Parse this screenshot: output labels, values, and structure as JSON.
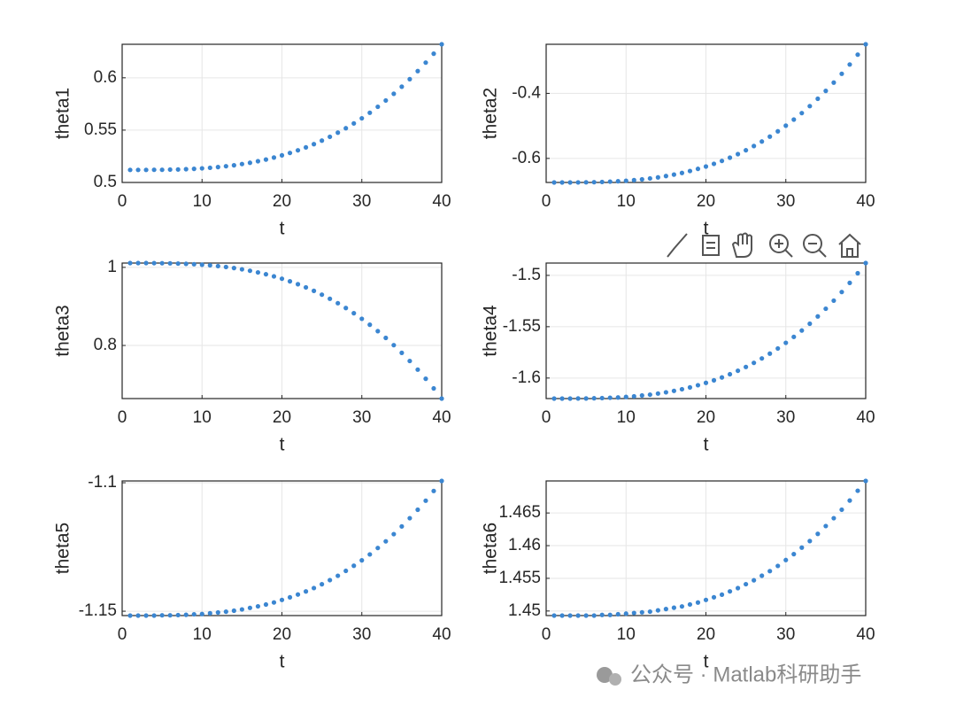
{
  "chart_data": [
    {
      "type": "scatter",
      "xlabel": "t",
      "ylabel": "theta1",
      "color": "#3b86d1",
      "grid": true,
      "x": [
        1,
        2,
        3,
        4,
        5,
        6,
        7,
        8,
        9,
        10,
        11,
        12,
        13,
        14,
        15,
        16,
        17,
        18,
        19,
        20,
        21,
        22,
        23,
        24,
        25,
        26,
        27,
        28,
        29,
        30,
        31,
        32,
        33,
        34,
        35,
        36,
        37,
        38,
        39,
        40
      ],
      "values": [
        0.512,
        0.512,
        0.512,
        0.5121,
        0.5121,
        0.5123,
        0.5124,
        0.5127,
        0.513,
        0.5135,
        0.514,
        0.5147,
        0.5155,
        0.5164,
        0.5176,
        0.5188,
        0.5203,
        0.5219,
        0.5238,
        0.5259,
        0.5282,
        0.5307,
        0.5335,
        0.5366,
        0.54,
        0.5436,
        0.5476,
        0.5518,
        0.5564,
        0.5613,
        0.5666,
        0.5723,
        0.5783,
        0.5847,
        0.5915,
        0.5987,
        0.6064,
        0.6145,
        0.623,
        0.632
      ],
      "xlim": [
        0,
        40
      ],
      "xticks": [
        0,
        10,
        20,
        30,
        40
      ],
      "ylim": [
        0.5,
        0.632
      ],
      "yticks": [
        0.5,
        0.55,
        0.6
      ]
    },
    {
      "type": "scatter",
      "xlabel": "t",
      "ylabel": "theta2",
      "color": "#3b86d1",
      "grid": true,
      "x": [
        1,
        2,
        3,
        4,
        5,
        6,
        7,
        8,
        9,
        10,
        11,
        12,
        13,
        14,
        15,
        16,
        17,
        18,
        19,
        20,
        21,
        22,
        23,
        24,
        25,
        26,
        27,
        28,
        29,
        30,
        31,
        32,
        33,
        34,
        35,
        36,
        37,
        38,
        39,
        40
      ],
      "values": [
        -0.674,
        -0.674,
        -0.674,
        -0.6738,
        -0.6735,
        -0.6731,
        -0.6725,
        -0.6715,
        -0.6703,
        -0.6688,
        -0.6668,
        -0.6645,
        -0.6616,
        -0.6583,
        -0.6543,
        -0.6498,
        -0.6447,
        -0.6388,
        -0.6322,
        -0.6249,
        -0.6167,
        -0.6077,
        -0.5977,
        -0.5868,
        -0.575,
        -0.562,
        -0.5481,
        -0.533,
        -0.5167,
        -0.4993,
        -0.4806,
        -0.4606,
        -0.4392,
        -0.4165,
        -0.3924,
        -0.3668,
        -0.3397,
        -0.3111,
        -0.2809,
        -0.249
      ],
      "xlim": [
        0,
        40
      ],
      "xticks": [
        0,
        10,
        20,
        30,
        40
      ],
      "ylim": [
        -0.674,
        -0.249
      ],
      "yticks": [
        -0.6,
        -0.4
      ]
    },
    {
      "type": "scatter",
      "xlabel": "t",
      "ylabel": "theta3",
      "color": "#3b86d1",
      "grid": true,
      "x": [
        1,
        2,
        3,
        4,
        5,
        6,
        7,
        8,
        9,
        10,
        11,
        12,
        13,
        14,
        15,
        16,
        17,
        18,
        19,
        20,
        21,
        22,
        23,
        24,
        25,
        26,
        27,
        28,
        29,
        30,
        31,
        32,
        33,
        34,
        35,
        36,
        37,
        38,
        39,
        40
      ],
      "values": [
        1.011,
        1.011,
        1.011,
        1.0108,
        1.0106,
        1.0103,
        1.0097,
        1.009,
        1.008,
        1.0067,
        1.0052,
        1.0032,
        1.0009,
        0.9982,
        0.995,
        0.9913,
        0.987,
        0.9823,
        0.9769,
        0.9709,
        0.9642,
        0.9568,
        0.9487,
        0.9398,
        0.9301,
        0.9196,
        0.9082,
        0.8959,
        0.8826,
        0.8683,
        0.8531,
        0.8367,
        0.8193,
        0.8008,
        0.7811,
        0.7602,
        0.7381,
        0.7147,
        0.69,
        0.664
      ],
      "xlim": [
        0,
        40
      ],
      "xticks": [
        0,
        10,
        20,
        30,
        40
      ],
      "ylim": [
        0.664,
        1.011
      ],
      "yticks": [
        0.8,
        1
      ]
    },
    {
      "type": "scatter",
      "xlabel": "t",
      "ylabel": "theta4",
      "color": "#3b86d1",
      "grid": true,
      "x": [
        1,
        2,
        3,
        4,
        5,
        6,
        7,
        8,
        9,
        10,
        11,
        12,
        13,
        14,
        15,
        16,
        17,
        18,
        19,
        20,
        21,
        22,
        23,
        24,
        25,
        26,
        27,
        28,
        29,
        30,
        31,
        32,
        33,
        34,
        35,
        36,
        37,
        38,
        39,
        40
      ],
      "values": [
        -1.62,
        -1.62,
        -1.62,
        -1.6199,
        -1.6199,
        -1.6197,
        -1.6195,
        -1.6192,
        -1.6189,
        -1.6184,
        -1.6178,
        -1.617,
        -1.6162,
        -1.6151,
        -1.6139,
        -1.6125,
        -1.6109,
        -1.6091,
        -1.607,
        -1.6047,
        -1.6022,
        -1.5994,
        -1.5963,
        -1.5929,
        -1.5892,
        -1.5852,
        -1.5809,
        -1.5762,
        -1.5712,
        -1.5657,
        -1.5599,
        -1.5537,
        -1.5471,
        -1.54,
        -1.5325,
        -1.5246,
        -1.5162,
        -1.5073,
        -1.4979,
        -1.488
      ],
      "xlim": [
        0,
        40
      ],
      "xticks": [
        0,
        10,
        20,
        30,
        40
      ],
      "ylim": [
        -1.62,
        -1.488
      ],
      "yticks": [
        -1.6,
        -1.55,
        -1.5
      ]
    },
    {
      "type": "scatter",
      "xlabel": "t",
      "ylabel": "theta5",
      "color": "#3b86d1",
      "grid": true,
      "x": [
        1,
        2,
        3,
        4,
        5,
        6,
        7,
        8,
        9,
        10,
        11,
        12,
        13,
        14,
        15,
        16,
        17,
        18,
        19,
        20,
        21,
        22,
        23,
        24,
        25,
        26,
        27,
        28,
        29,
        30,
        31,
        32,
        33,
        34,
        35,
        36,
        37,
        38,
        39,
        40
      ],
      "values": [
        -1.1517,
        -1.1517,
        -1.1517,
        -1.1517,
        -1.1516,
        -1.1516,
        -1.1515,
        -1.1514,
        -1.1512,
        -1.1511,
        -1.1508,
        -1.1505,
        -1.1502,
        -1.1498,
        -1.1493,
        -1.1487,
        -1.1481,
        -1.1474,
        -1.1466,
        -1.1456,
        -1.1446,
        -1.1435,
        -1.1423,
        -1.141,
        -1.1395,
        -1.1379,
        -1.1362,
        -1.1343,
        -1.1323,
        -1.1302,
        -1.1279,
        -1.1254,
        -1.1228,
        -1.12,
        -1.117,
        -1.1138,
        -1.1105,
        -1.107,
        -1.1032,
        -1.0993
      ],
      "xlim": [
        0,
        40
      ],
      "xticks": [
        0,
        10,
        20,
        30,
        40
      ],
      "ylim": [
        -1.1517,
        -1.0993
      ],
      "yticks": [
        -1.15,
        -1.1
      ]
    },
    {
      "type": "scatter",
      "xlabel": "t",
      "ylabel": "theta6",
      "color": "#3b86d1",
      "grid": true,
      "x": [
        1,
        2,
        3,
        4,
        5,
        6,
        7,
        8,
        9,
        10,
        11,
        12,
        13,
        14,
        15,
        16,
        17,
        18,
        19,
        20,
        21,
        22,
        23,
        24,
        25,
        26,
        27,
        28,
        29,
        30,
        31,
        32,
        33,
        34,
        35,
        36,
        37,
        38,
        39,
        40
      ],
      "values": [
        1.4493,
        1.4493,
        1.4493,
        1.4493,
        1.4493,
        1.4493,
        1.4494,
        1.4494,
        1.4495,
        1.4496,
        1.4497,
        1.4498,
        1.4499,
        1.4501,
        1.4503,
        1.4505,
        1.4507,
        1.451,
        1.4513,
        1.4517,
        1.4521,
        1.4525,
        1.453,
        1.4535,
        1.4541,
        1.4547,
        1.4554,
        1.4561,
        1.4569,
        1.4578,
        1.4587,
        1.4597,
        1.4607,
        1.4618,
        1.463,
        1.4642,
        1.4655,
        1.4669,
        1.4684,
        1.4699
      ],
      "xlim": [
        0,
        40
      ],
      "xticks": [
        0,
        10,
        20,
        30,
        40
      ],
      "ylim": [
        1.4493,
        1.4699
      ],
      "yticks": [
        1.45,
        1.455,
        1.46,
        1.465
      ]
    }
  ],
  "watermark": "公众号 · Matlab科研助手"
}
